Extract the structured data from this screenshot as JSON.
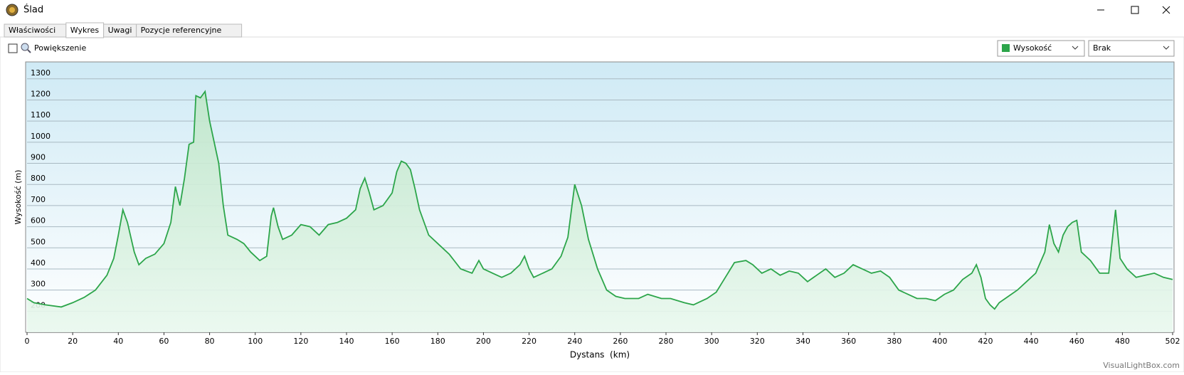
{
  "window": {
    "title": "Ślad",
    "tabs": [
      "Właściwości",
      "Wykres",
      "Uwagi",
      "Pozycje referencyjne"
    ],
    "zoom_checkbox": "Powiększenie",
    "second_select": "Brak",
    "watermark": "VisualLightBox.com"
  },
  "chart_data": {
    "type": "area",
    "xlabel": "Dystans  (km)",
    "ylabel": "Wysokość (m)",
    "x": [
      0,
      3,
      8,
      15,
      20,
      25,
      30,
      35,
      38,
      40,
      42,
      44,
      47,
      49,
      52,
      56,
      60,
      63,
      65,
      67,
      69,
      71,
      73,
      74,
      76,
      78,
      80,
      82,
      84,
      86,
      88,
      92,
      95,
      98,
      102,
      105,
      107,
      108,
      110,
      112,
      116,
      120,
      124,
      128,
      132,
      136,
      140,
      144,
      146,
      148,
      150,
      152,
      156,
      160,
      162,
      164,
      166,
      168,
      170,
      172,
      176,
      180,
      185,
      190,
      195,
      198,
      200,
      204,
      208,
      212,
      216,
      218,
      220,
      222,
      226,
      230,
      234,
      237,
      240,
      243,
      246,
      250,
      254,
      258,
      262,
      268,
      272,
      278,
      282,
      288,
      292,
      298,
      302,
      306,
      310,
      315,
      318,
      322,
      326,
      330,
      334,
      338,
      342,
      346,
      350,
      354,
      358,
      362,
      366,
      370,
      374,
      378,
      382,
      386,
      390,
      394,
      398,
      402,
      406,
      410,
      414,
      416,
      418,
      420,
      422,
      424,
      426,
      430,
      434,
      438,
      442,
      446,
      448,
      450,
      452,
      454,
      456,
      458,
      460,
      462,
      466,
      470,
      474,
      477,
      479,
      482,
      486,
      490,
      494,
      498,
      502
    ],
    "series": [
      {
        "name": "Wysokość",
        "color": "#2ca54a",
        "values": [
          260,
          240,
          230,
          220,
          240,
          265,
          300,
          370,
          450,
          560,
          680,
          620,
          480,
          420,
          450,
          470,
          520,
          620,
          790,
          700,
          830,
          990,
          1000,
          1220,
          1210,
          1240,
          1100,
          1000,
          900,
          700,
          560,
          540,
          520,
          480,
          440,
          460,
          650,
          690,
          600,
          540,
          560,
          610,
          600,
          560,
          610,
          620,
          640,
          680,
          780,
          830,
          760,
          680,
          700,
          760,
          860,
          910,
          900,
          870,
          780,
          680,
          560,
          520,
          470,
          400,
          380,
          440,
          400,
          380,
          360,
          380,
          420,
          460,
          400,
          360,
          380,
          400,
          460,
          550,
          800,
          700,
          540,
          400,
          300,
          270,
          260,
          260,
          280,
          260,
          260,
          240,
          230,
          260,
          290,
          360,
          430,
          440,
          420,
          380,
          400,
          370,
          390,
          380,
          340,
          370,
          400,
          360,
          380,
          420,
          400,
          380,
          390,
          360,
          300,
          280,
          260,
          260,
          250,
          280,
          300,
          350,
          380,
          420,
          360,
          260,
          230,
          210,
          240,
          270,
          300,
          340,
          380,
          480,
          610,
          520,
          480,
          560,
          600,
          620,
          630,
          480,
          440,
          380,
          380,
          680,
          450,
          400,
          360,
          370,
          380,
          360,
          350
        ]
      }
    ],
    "xlim": [
      0,
      502
    ],
    "ylim": [
      100,
      1380
    ],
    "xticks": [
      0,
      20,
      40,
      60,
      80,
      100,
      120,
      140,
      160,
      180,
      200,
      220,
      240,
      260,
      280,
      300,
      320,
      340,
      360,
      380,
      400,
      420,
      440,
      460,
      480,
      502
    ],
    "yticks": [
      200,
      300,
      400,
      500,
      600,
      700,
      800,
      900,
      1000,
      1100,
      1200,
      1300
    ],
    "grid": true
  }
}
